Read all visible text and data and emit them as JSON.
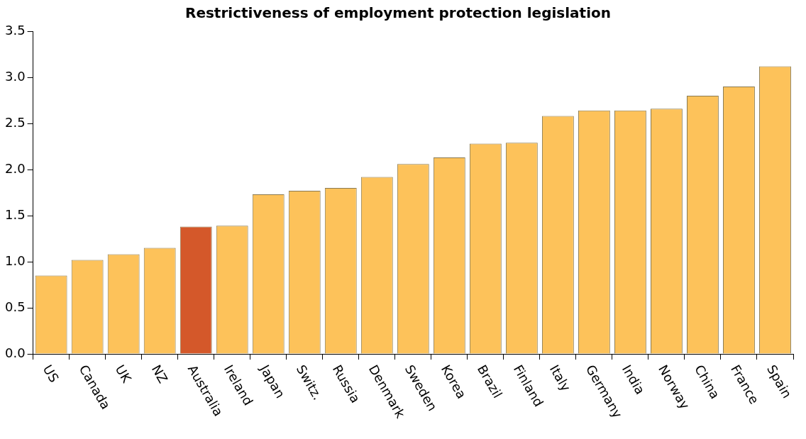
{
  "chart_data": {
    "type": "bar",
    "title": "Restrictiveness of employment protection legislation",
    "categories": [
      "US",
      "Canada",
      "UK",
      "NZ",
      "Australia",
      "Ireland",
      "Japan",
      "Switz.",
      "Russia",
      "Denmark",
      "Sweden",
      "Korea",
      "Brazil",
      "Finland",
      "Italy",
      "Germany",
      "India",
      "Norway",
      "China",
      "France",
      "Spain"
    ],
    "values": [
      0.85,
      1.02,
      1.08,
      1.15,
      1.38,
      1.39,
      1.73,
      1.77,
      1.8,
      1.92,
      2.06,
      2.13,
      2.28,
      2.29,
      2.58,
      2.64,
      2.64,
      2.66,
      2.8,
      2.9,
      3.12
    ],
    "colors": [
      "#fdc25a",
      "#fdc25a",
      "#fdc25a",
      "#fdc25a",
      "#d4582a",
      "#fdc25a",
      "#fdc25a",
      "#fdc25a",
      "#fdc25a",
      "#fdc25a",
      "#fdc25a",
      "#fdc25a",
      "#fdc25a",
      "#fdc25a",
      "#fdc25a",
      "#fdc25a",
      "#fdc25a",
      "#fdc25a",
      "#fdc25a",
      "#fdc25a",
      "#fdc25a"
    ],
    "ylim": [
      0,
      3.5
    ],
    "yticks": [
      {
        "value": 0,
        "label": "0.0"
      },
      {
        "value": 0.5,
        "label": "0.5"
      },
      {
        "value": 1,
        "label": "1.0"
      },
      {
        "value": 1.5,
        "label": "1.5"
      },
      {
        "value": 2,
        "label": "2.0"
      },
      {
        "value": 2.5,
        "label": "2.5"
      },
      {
        "value": 3,
        "label": "3.0"
      },
      {
        "value": 3.5,
        "label": "3.5"
      }
    ],
    "grid": false,
    "legend": false
  }
}
